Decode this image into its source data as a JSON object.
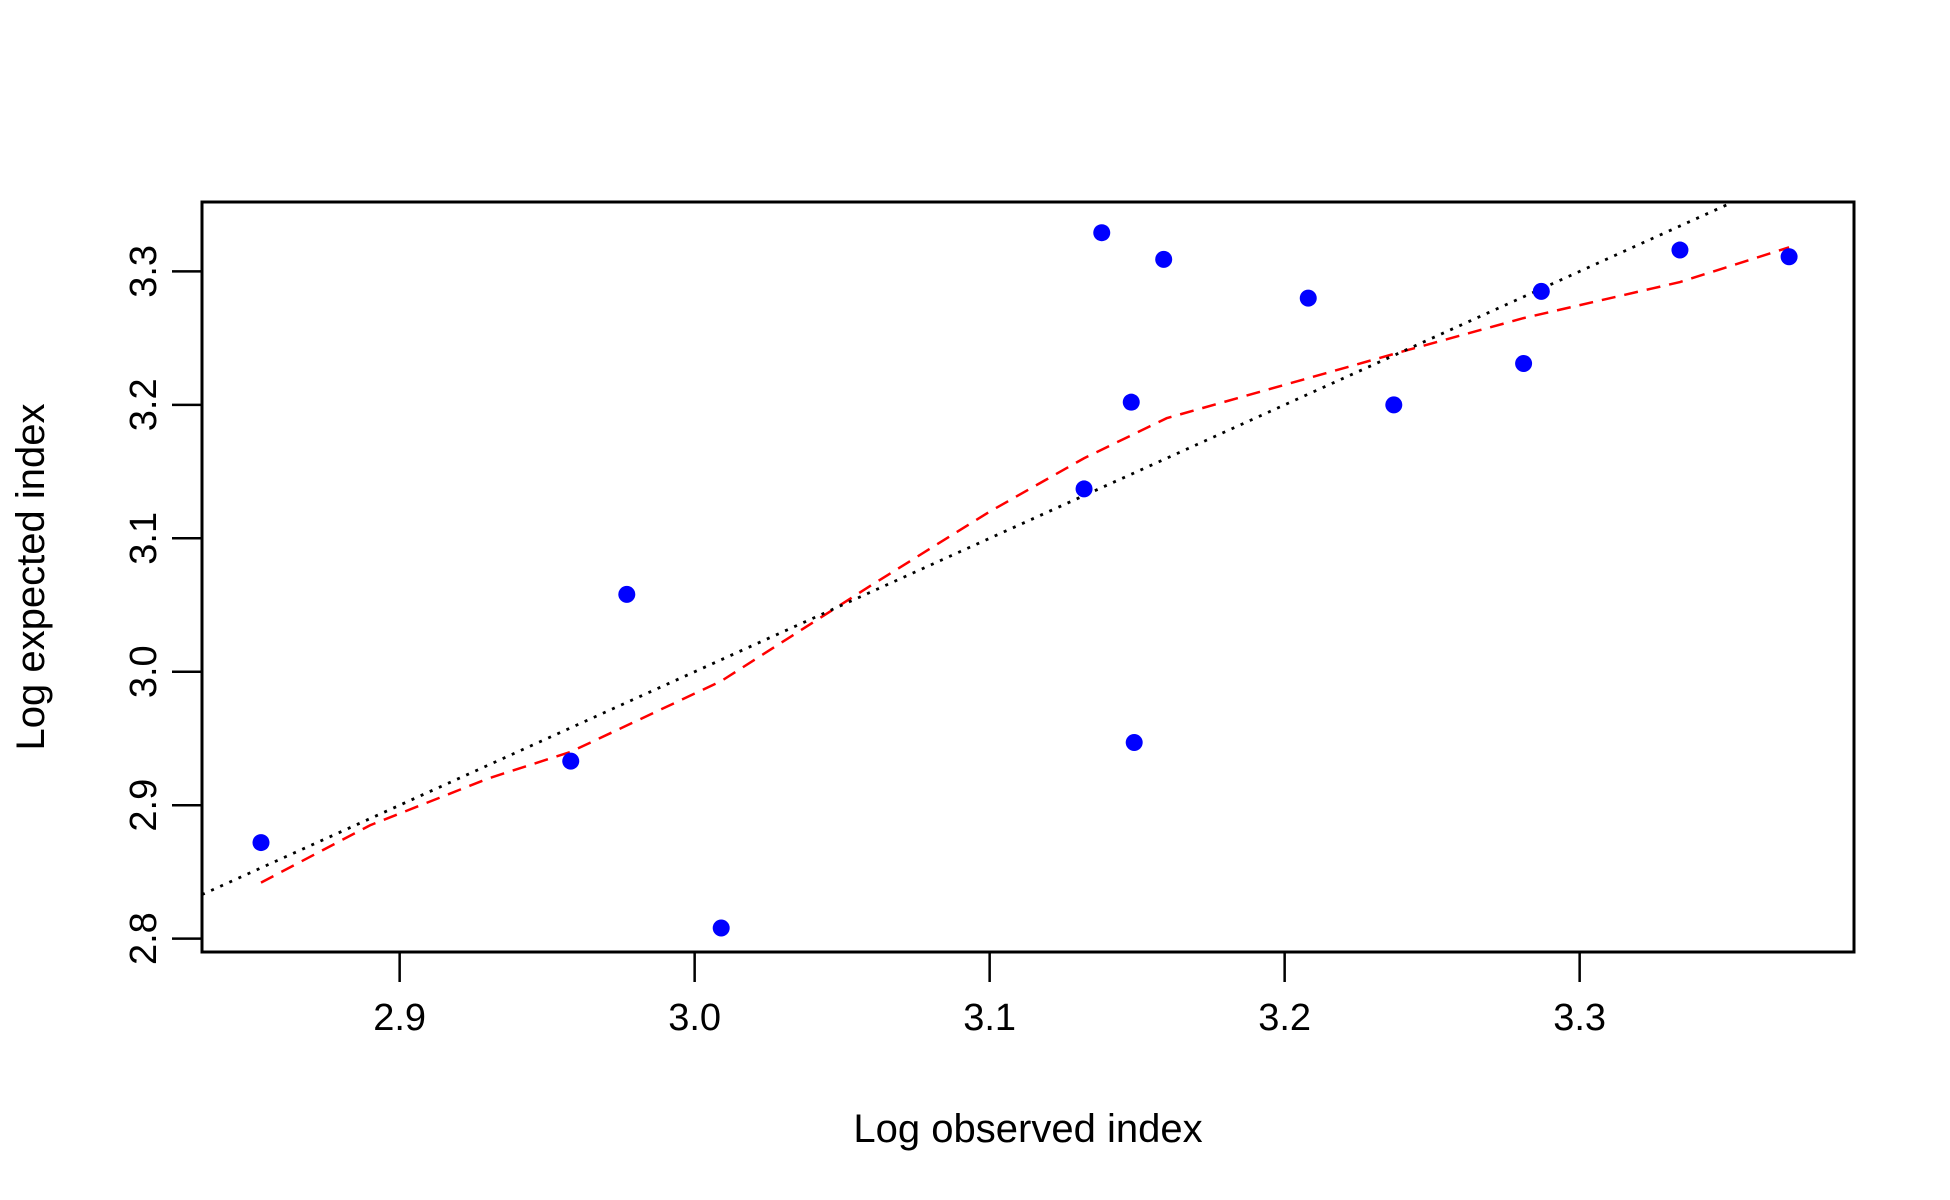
{
  "chart_data": {
    "type": "scatter",
    "title": "",
    "xlabel": "Log observed index",
    "ylabel": "Log expected index",
    "xlim": [
      2.833,
      3.393
    ],
    "ylim": [
      2.79,
      3.352
    ],
    "x_ticks": [
      "2.9",
      "3.0",
      "3.1",
      "3.2",
      "3.3"
    ],
    "y_ticks": [
      "2.8",
      "2.9",
      "3.0",
      "3.1",
      "3.2",
      "3.3"
    ],
    "grid": false,
    "legend": "none",
    "series": [
      {
        "kind": "points",
        "color": "#0000ff",
        "x": [
          2.853,
          2.958,
          2.977,
          3.009,
          3.132,
          3.138,
          3.148,
          3.149,
          3.159,
          3.208,
          3.237,
          3.281,
          3.287,
          3.334,
          3.371
        ],
        "y": [
          2.872,
          2.933,
          3.058,
          2.808,
          3.137,
          3.329,
          3.202,
          2.947,
          3.309,
          3.28,
          3.2,
          3.231,
          3.285,
          3.316,
          3.311
        ]
      },
      {
        "kind": "line",
        "style": "dashed",
        "color": "#ff0000",
        "x": [
          2.853,
          2.89,
          2.93,
          2.958,
          3.009,
          3.06,
          3.1,
          3.132,
          3.16,
          3.208,
          3.24,
          3.281,
          3.334,
          3.371
        ],
        "y": [
          2.842,
          2.885,
          2.92,
          2.94,
          2.993,
          3.065,
          3.12,
          3.16,
          3.19,
          3.22,
          3.24,
          3.265,
          3.292,
          3.318
        ]
      },
      {
        "kind": "line",
        "style": "dotted",
        "color": "#000000",
        "x": [
          2.833,
          3.393
        ],
        "y": [
          2.833,
          3.393
        ]
      }
    ]
  }
}
